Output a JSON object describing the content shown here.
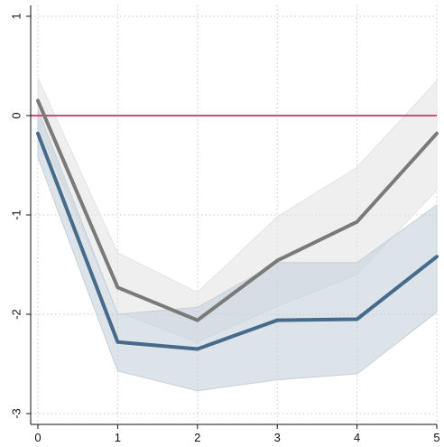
{
  "chart_data": {
    "type": "line",
    "title": "",
    "xlabel": "",
    "ylabel": "",
    "x": [
      0,
      1,
      2,
      3,
      4,
      5
    ],
    "xlim": [
      0,
      5
    ],
    "ylim": [
      -3,
      1
    ],
    "xticks": [
      "0",
      "1",
      "2",
      "3",
      "4",
      "5"
    ],
    "yticks": [
      "-3",
      "-2",
      "-1",
      "0",
      "1"
    ],
    "grid": true,
    "legend": "none",
    "reference_line": {
      "y": 0,
      "color": "#d9486f"
    },
    "series": [
      {
        "color": "#7a7a7a",
        "values": [
          0.15,
          -1.73,
          -2.06,
          -1.46,
          -1.07,
          -0.18
        ],
        "band_lower": [
          -0.1,
          -1.98,
          -2.28,
          -1.92,
          -1.6,
          -0.75
        ],
        "band_upper": [
          0.38,
          -1.38,
          -1.78,
          -1.02,
          -0.52,
          0.35
        ],
        "band_color": "#e4e4e4"
      },
      {
        "color": "#456a8a",
        "values": [
          -0.18,
          -2.28,
          -2.35,
          -2.06,
          -2.05,
          -1.42
        ],
        "band_lower": [
          -0.42,
          -2.57,
          -2.77,
          -2.66,
          -2.6,
          -1.98
        ],
        "band_upper": [
          0.06,
          -2.0,
          -1.93,
          -1.48,
          -1.48,
          -0.9
        ],
        "band_color": "#c5d0da"
      }
    ]
  }
}
